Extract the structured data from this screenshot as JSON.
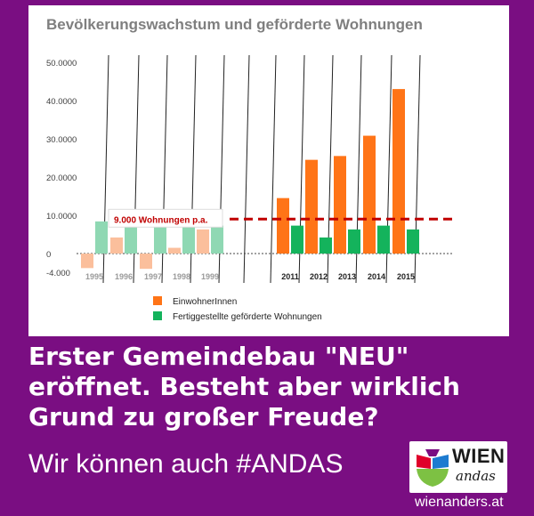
{
  "chart_data": {
    "type": "bar",
    "title": "Bevölkerungswachstum und geförderte Wohnungen",
    "categories": [
      "1995",
      "1996",
      "1997",
      "1998",
      "1999",
      "",
      "",
      "2011",
      "2012",
      "2013",
      "2014",
      "2015"
    ],
    "y_tick_labels": [
      "50.0000",
      "40.0000",
      "30.0000",
      "20.0000",
      "10.0000",
      "0",
      "-4.000"
    ],
    "ylim": [
      -4000,
      50000
    ],
    "series": [
      {
        "name": "EinwohnerInnen",
        "values": [
          -3800,
          4200,
          -4000,
          1500,
          6300,
          null,
          null,
          14500,
          24500,
          25500,
          30800,
          43000
        ]
      },
      {
        "name": "Fertiggestellte geförderte Wohnungen",
        "values": [
          8400,
          7400,
          7500,
          7200,
          7300,
          null,
          null,
          7300,
          4200,
          6300,
          7300,
          6300
        ]
      }
    ],
    "reference_line": {
      "value": 9000,
      "label": "9.000 Wohnungen p.a."
    },
    "legend_position": "bottom-left",
    "colors": {
      "einwohner": "#ff7417",
      "einwohner_faded": "#fbbf9c",
      "wohnungen": "#14b35c",
      "wohnungen_faded": "#8fd8b3",
      "reference": "#c00000",
      "axis_text": "#8a8a8a",
      "tick_text": "#404040"
    }
  },
  "headline": "Erster Gemeindebau \"NEU\" eröffnet. Besteht aber wirklich Grund zu großer Freude?",
  "tagline": "Wir können auch #ANDAS",
  "logo": {
    "line1": "WIEN",
    "line2": "andas",
    "colors": [
      "#e0002a",
      "#1d7bd0",
      "#7dc143",
      "#7a0e82"
    ]
  },
  "site_url": "wienanders.at"
}
